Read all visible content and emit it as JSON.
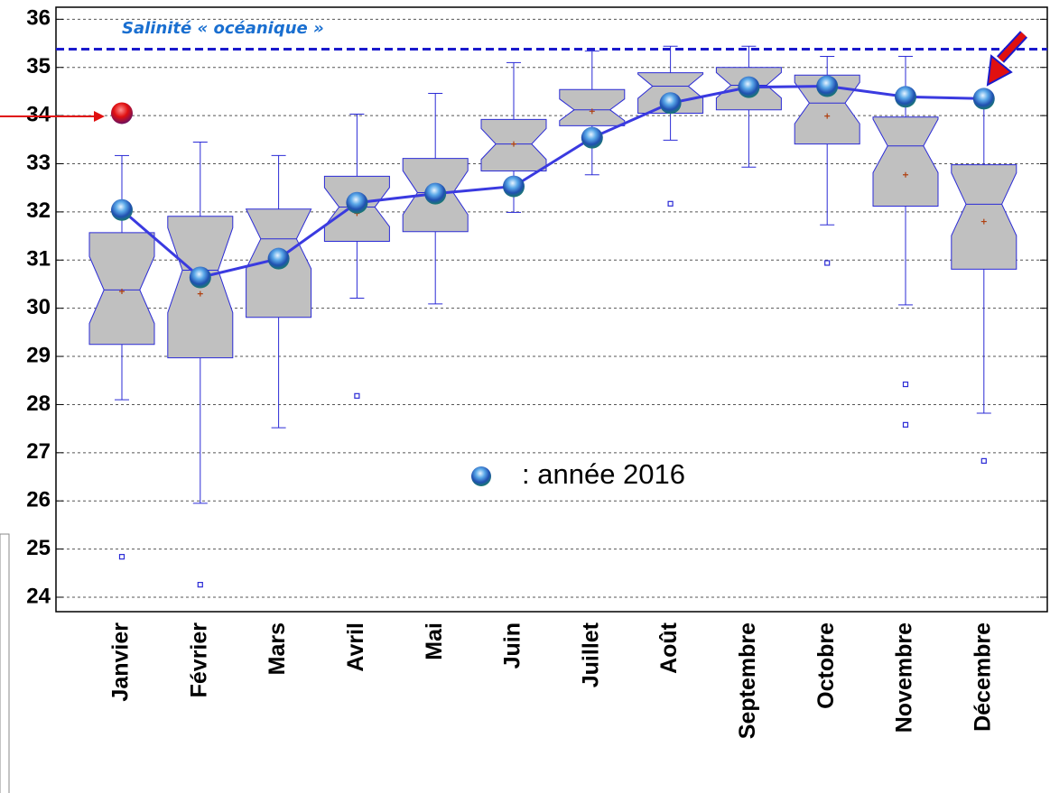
{
  "chart_data": {
    "type": "box",
    "categories": [
      "Janvier",
      "Février",
      "Mars",
      "Avril",
      "Mai",
      "Juin",
      "Juillet",
      "Août",
      "Septembre",
      "Octobre",
      "Novembre",
      "Décembre"
    ],
    "boxes": {
      "color": "#c0c0c0",
      "stroke": "#2b2bd6",
      "whisker_low": [
        28.1,
        25.95,
        27.52,
        30.21,
        30.09,
        31.99,
        32.77,
        33.49,
        32.93,
        31.73,
        30.07,
        27.82
      ],
      "q1": [
        29.25,
        28.97,
        29.81,
        31.39,
        31.59,
        32.85,
        33.79,
        34.05,
        34.12,
        33.41,
        32.12,
        30.81
      ],
      "median": [
        30.38,
        30.79,
        31.44,
        32.1,
        32.4,
        33.41,
        34.12,
        34.61,
        34.63,
        34.26,
        33.37,
        32.16
      ],
      "q3": [
        31.57,
        31.91,
        32.06,
        32.74,
        33.11,
        33.92,
        34.54,
        34.89,
        35.0,
        34.84,
        33.97,
        32.98
      ],
      "whisker_high": [
        33.17,
        33.45,
        33.17,
        34.03,
        34.46,
        35.1,
        35.34,
        35.44,
        35.44,
        35.23,
        35.23,
        34.31
      ],
      "mean": [
        30.35,
        30.3,
        30.97,
        31.97,
        32.4,
        33.41,
        34.09,
        34.31,
        34.61,
        33.99,
        32.77,
        31.8
      ],
      "outliers": [
        [
          24.84
        ],
        [
          24.26
        ],
        [],
        [
          28.18
        ],
        [],
        [],
        [],
        [
          32.17
        ],
        [],
        [
          30.94
        ],
        [
          28.42,
          27.58
        ],
        [
          26.83
        ]
      ]
    },
    "line": {
      "name": ": année 2016",
      "color": "#3a3ae0",
      "values": [
        32.04,
        30.64,
        31.03,
        32.19,
        32.38,
        32.53,
        33.54,
        34.26,
        34.59,
        34.61,
        34.39,
        34.35
      ]
    },
    "highlight_values": [
      34.05,
      null,
      null,
      null,
      null,
      null,
      null,
      null,
      null,
      null,
      null,
      null
    ],
    "reference_line": {
      "label": "Salinité « océanique »",
      "value": 35.38,
      "color": "#1a1acc"
    },
    "ylim": [
      23.7,
      36.25
    ],
    "yticks": [
      24,
      25,
      26,
      27,
      28,
      29,
      30,
      31,
      32,
      33,
      34,
      35,
      36
    ],
    "grid": true
  }
}
